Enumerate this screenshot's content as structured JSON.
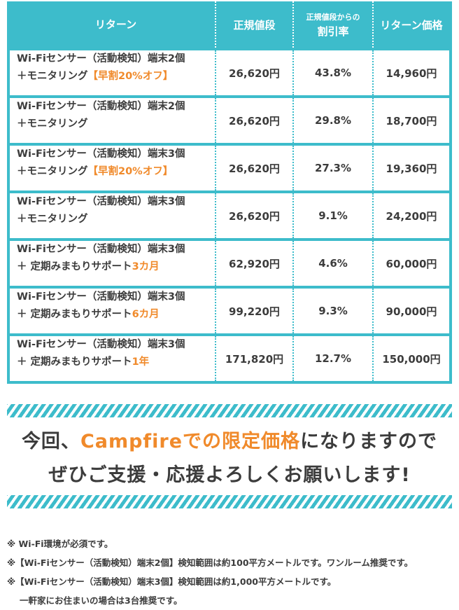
{
  "table": {
    "headers": {
      "return": "リターン",
      "regular_price": "正規値段",
      "discount_line1": "正規値段からの",
      "discount_line2": "割引率",
      "return_price": "リターン価格"
    },
    "rows": [
      {
        "line1": "Wi-Fiセンサー（活動検知）端末2個",
        "line2": "＋モニタリング",
        "highlight": "【早割20%オフ】",
        "regular": "26,620円",
        "discount": "43.8%",
        "price": "14,960円"
      },
      {
        "line1": "Wi-Fiセンサー（活動検知）端末2個",
        "line2": "＋モニタリング",
        "highlight": "",
        "regular": "26,620円",
        "discount": "29.8%",
        "price": "18,700円"
      },
      {
        "line1": "Wi-Fiセンサー（活動検知）端末3個",
        "line2": "＋モニタリング",
        "highlight": "【早割20%オフ】",
        "regular": "26,620円",
        "discount": "27.3%",
        "price": "19,360円"
      },
      {
        "line1": "Wi-Fiセンサー（活動検知）端末3個",
        "line2": "＋モニタリング",
        "highlight": "",
        "regular": "26,620円",
        "discount": "9.1%",
        "price": "24,200円"
      },
      {
        "line1": "Wi-Fiセンサー（活動検知）端末3個",
        "line2": "＋ 定期みまもりサポート",
        "highlight": "3カ月",
        "regular": "62,920円",
        "discount": "4.6%",
        "price": "60,000円"
      },
      {
        "line1": "Wi-Fiセンサー（活動検知）端末3個",
        "line2": "＋ 定期みまもりサポート",
        "highlight": "6カ月",
        "regular": "99,220円",
        "discount": "9.3%",
        "price": "90,000円"
      },
      {
        "line1": "Wi-Fiセンサー（活動検知）端末3個",
        "line2": "＋ 定期みまもりサポート",
        "highlight": "1年",
        "regular": "171,820円",
        "discount": "12.7%",
        "price": "150,000円"
      }
    ]
  },
  "banner": {
    "pre": "今回、",
    "highlight": "Campfireでの限定価格",
    "post": "になりますので",
    "line2": "ぜひご支援・応援よろしくお願いします!"
  },
  "notes": [
    "※ Wi-Fi環境が必須です。",
    "※【Wi-Fiセンサー（活動検知）端末2個】検知範囲は約100平方メートルです。ワンルーム推奨です。",
    "※【Wi-Fiセンサー（活動検知）端末3個】検知範囲は約1,000平方メートルです。",
    "一軒家にお住まいの場合は3台推奨です。"
  ],
  "colors": {
    "teal": "#3dbccb",
    "orange": "#f08a2b"
  }
}
